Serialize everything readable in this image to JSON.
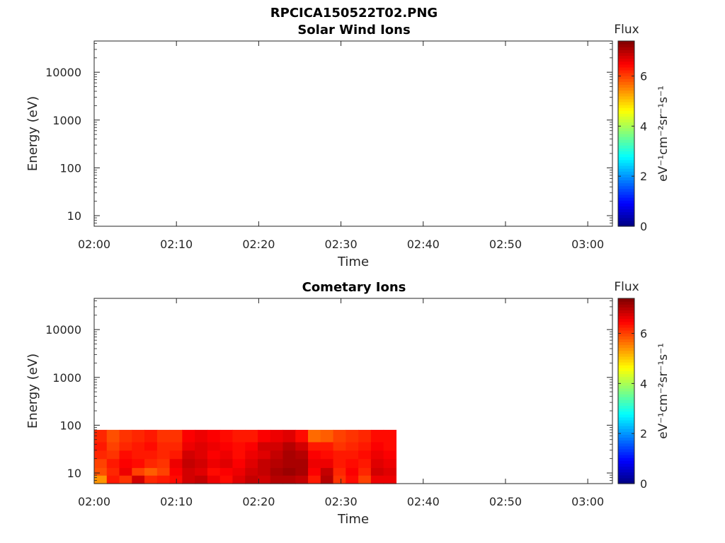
{
  "figure_title": "RPCICA150522T02.PNG",
  "colormap": [
    "#00007f",
    "#0000ff",
    "#007fff",
    "#00ffff",
    "#7fff7f",
    "#ffff00",
    "#ff7f00",
    "#ff0000",
    "#7f0000"
  ],
  "chart_data": [
    {
      "type": "heatmap",
      "title": "Solar Wind Ions",
      "xlabel": "Time",
      "ylabel": "Energy (eV)",
      "x_ticks": [
        "02:00",
        "02:10",
        "02:20",
        "02:30",
        "02:40",
        "02:50",
        "03:00"
      ],
      "xlim_minutes": [
        0,
        63
      ],
      "yscale": "log",
      "ylim": [
        6,
        45000
      ],
      "y_ticks": [
        "10",
        "100",
        "1000",
        "10000"
      ],
      "colorbar": {
        "label": "Flux",
        "units": "eV⁻¹cm⁻²sr⁻¹s⁻¹",
        "ticks": [
          "0",
          "2",
          "4",
          "6"
        ],
        "range": [
          0,
          7.4
        ]
      },
      "values": []
    },
    {
      "type": "heatmap",
      "title": "Cometary Ions",
      "xlabel": "Time",
      "ylabel": "Energy (eV)",
      "x_ticks": [
        "02:00",
        "02:10",
        "02:20",
        "02:30",
        "02:40",
        "02:50",
        "03:00"
      ],
      "xlim_minutes": [
        0,
        63
      ],
      "yscale": "log",
      "ylim": [
        6,
        45000
      ],
      "y_ticks": [
        "10",
        "100",
        "1000",
        "10000"
      ],
      "colorbar": {
        "label": "Flux",
        "units": "eV⁻¹cm⁻²sr⁻¹s⁻¹",
        "ticks": [
          "0",
          "2",
          "4",
          "6"
        ],
        "range": [
          0,
          7.4
        ]
      },
      "time_bins_minutes": [
        0,
        36.7
      ],
      "energy_bins": [
        6,
        9,
        13,
        20,
        30,
        45,
        80
      ],
      "values": [
        [
          5.4,
          6.3,
          6.1,
          6.8,
          6.2,
          6.3,
          6.4,
          6.8,
          6.9,
          6.6,
          6.4,
          6.7,
          6.9,
          6.8,
          7.0,
          7.0,
          6.9,
          6.3,
          7.0,
          6.1,
          6.4,
          6.0,
          6.6,
          6.6
        ],
        [
          5.9,
          6.2,
          6.6,
          6.0,
          5.8,
          6.0,
          6.5,
          6.8,
          6.7,
          6.4,
          6.5,
          6.6,
          6.8,
          6.9,
          7.1,
          7.2,
          7.1,
          6.5,
          6.9,
          6.2,
          6.5,
          6.2,
          6.8,
          6.7
        ],
        [
          6.0,
          6.3,
          6.5,
          6.4,
          6.2,
          6.1,
          6.6,
          6.9,
          6.8,
          6.6,
          6.7,
          6.5,
          6.7,
          6.9,
          7.0,
          7.1,
          7.1,
          6.6,
          6.6,
          6.3,
          6.4,
          6.3,
          6.7,
          6.6
        ],
        [
          6.2,
          6.1,
          6.4,
          6.3,
          6.3,
          6.2,
          6.3,
          6.8,
          6.7,
          6.5,
          6.6,
          6.4,
          6.6,
          6.7,
          6.9,
          7.1,
          7.0,
          6.5,
          6.4,
          6.3,
          6.3,
          6.4,
          6.6,
          6.5
        ],
        [
          6.3,
          6.0,
          6.2,
          6.3,
          6.4,
          6.2,
          6.2,
          6.6,
          6.7,
          6.6,
          6.5,
          6.4,
          6.5,
          6.8,
          6.8,
          7.0,
          6.8,
          6.3,
          6.3,
          6.1,
          6.2,
          6.3,
          6.5,
          6.4
        ],
        [
          6.2,
          5.9,
          6.1,
          6.2,
          6.3,
          6.1,
          6.1,
          6.5,
          6.6,
          6.5,
          6.4,
          6.3,
          6.3,
          6.5,
          6.6,
          6.7,
          6.4,
          5.7,
          5.8,
          6.0,
          6.1,
          6.2,
          6.4,
          6.4
        ]
      ]
    }
  ]
}
